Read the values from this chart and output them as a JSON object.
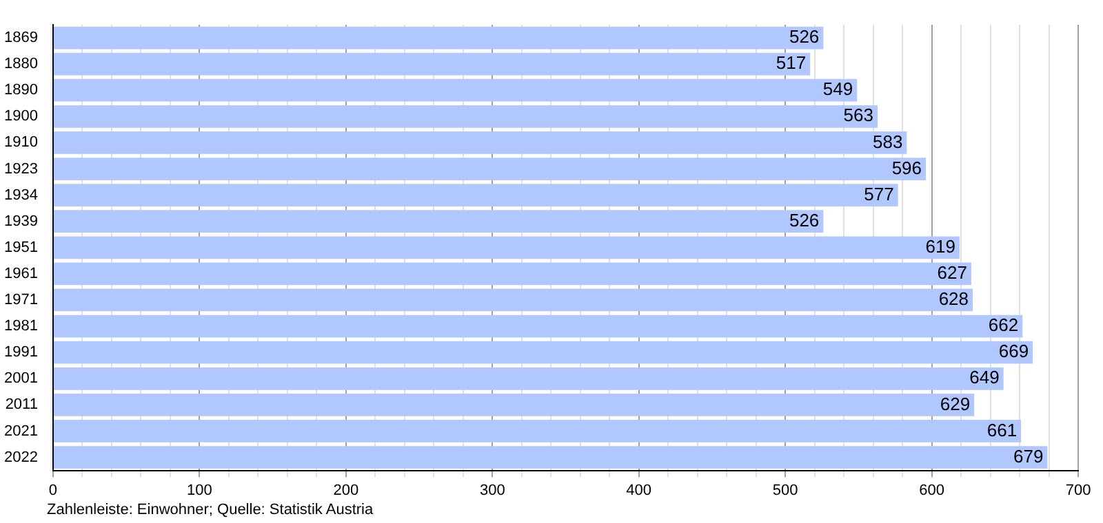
{
  "chart_data": {
    "type": "bar",
    "orientation": "horizontal",
    "categories": [
      "1869",
      "1880",
      "1890",
      "1900",
      "1910",
      "1923",
      "1934",
      "1939",
      "1951",
      "1961",
      "1971",
      "1981",
      "1991",
      "2001",
      "2011",
      "2021",
      "2022"
    ],
    "values": [
      526,
      517,
      549,
      563,
      583,
      596,
      577,
      526,
      619,
      627,
      628,
      662,
      669,
      649,
      629,
      661,
      679
    ],
    "color": "#b0c8ff",
    "data_labels": true,
    "grid": "x",
    "xlim": [
      0,
      700
    ],
    "xticks": [
      0,
      {
        "value": 20,
        "label": null
      },
      {
        "value": 40,
        "label": null
      },
      {
        "value": 60,
        "label": null
      },
      {
        "value": 80,
        "label": null
      },
      100,
      {
        "value": 120,
        "label": null
      },
      {
        "value": 140,
        "label": null
      },
      {
        "value": 160,
        "label": null
      },
      {
        "value": 180,
        "label": null
      },
      200,
      {
        "value": 220,
        "label": null
      },
      {
        "value": 240,
        "label": null
      },
      {
        "value": 260,
        "label": null
      },
      {
        "value": 280,
        "label": null
      },
      300,
      {
        "value": 320,
        "label": null
      },
      {
        "value": 340,
        "label": null
      },
      {
        "value": 360,
        "label": null
      },
      {
        "value": 380,
        "label": null
      },
      400,
      {
        "value": 420,
        "label": null
      },
      {
        "value": 440,
        "label": null
      },
      {
        "value": 460,
        "label": null
      },
      {
        "value": 480,
        "label": null
      },
      500,
      {
        "value": 520,
        "label": null
      },
      {
        "value": 540,
        "label": null
      },
      {
        "value": 560,
        "label": null
      },
      {
        "value": 580,
        "label": null
      },
      600,
      {
        "value": 620,
        "label": null
      },
      {
        "value": 640,
        "label": null
      },
      {
        "value": 660,
        "label": null
      },
      {
        "value": 680,
        "label": null
      },
      700
    ],
    "annotations": [
      "Zahlenleiste: Einwohner; Quelle: Statistik Austria"
    ]
  }
}
